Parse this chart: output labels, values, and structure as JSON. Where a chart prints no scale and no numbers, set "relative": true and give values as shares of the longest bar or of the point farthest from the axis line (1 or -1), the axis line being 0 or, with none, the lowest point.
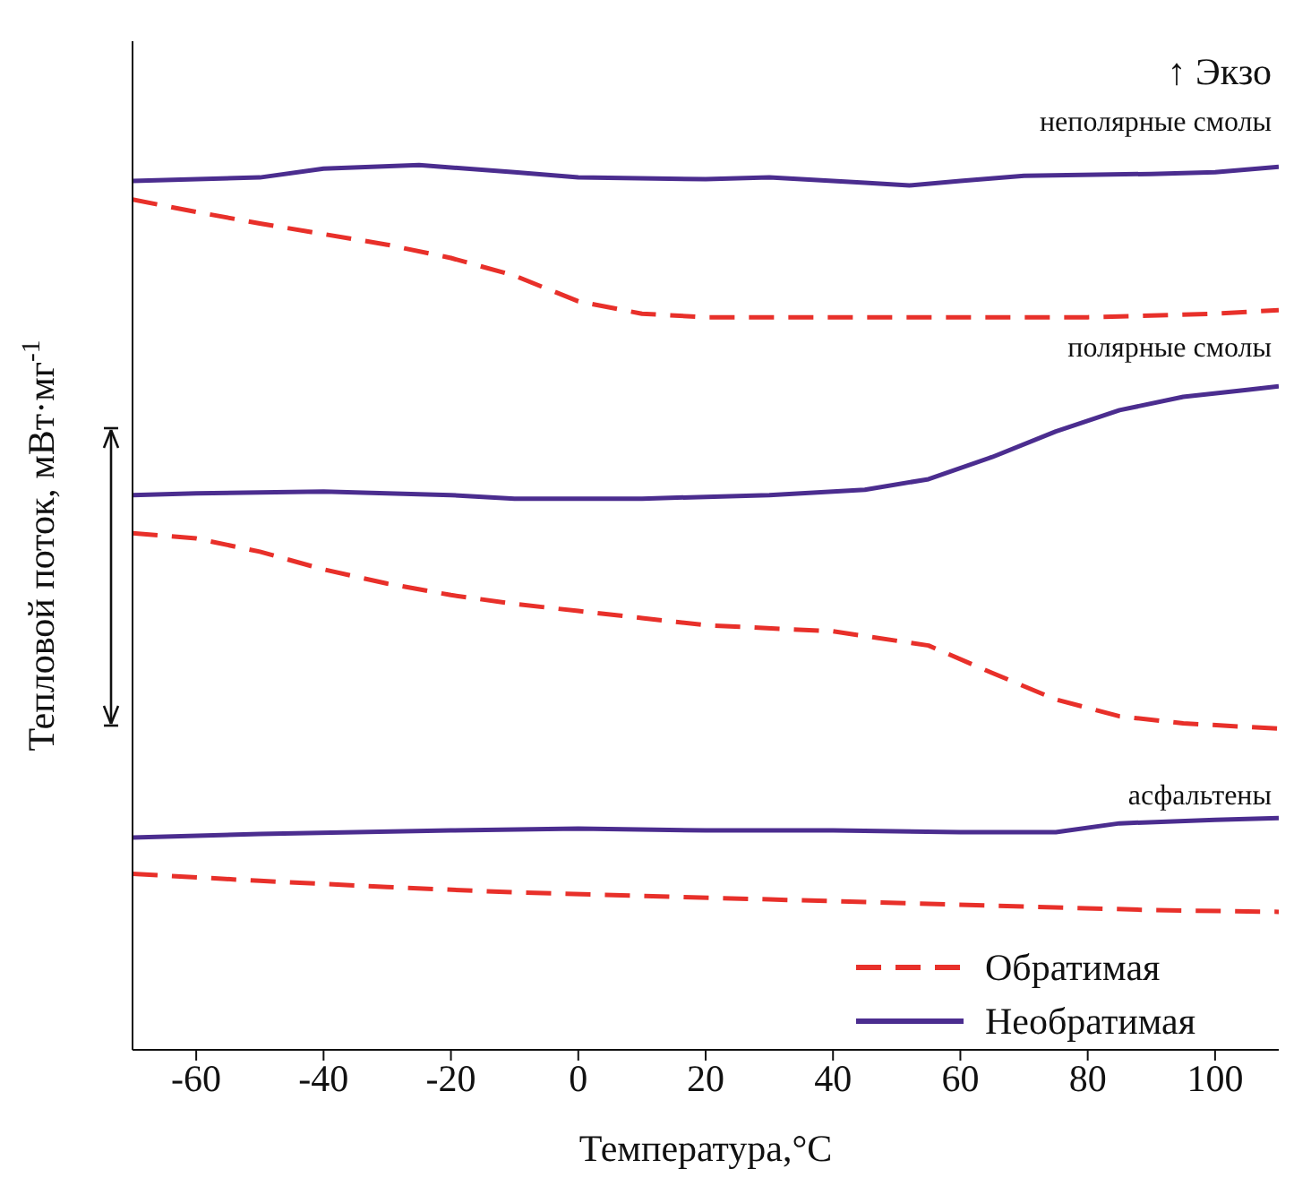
{
  "chart_data": {
    "type": "line",
    "relative": true,
    "xlabel": "Температура,°C",
    "ylabel": "Тепловой поток, мВт·мг$^{-1}$",
    "xlim": [
      -70,
      110
    ],
    "xticks": [
      -60,
      -40,
      -20,
      0,
      20,
      40,
      60,
      80,
      100
    ],
    "legend": "bottom right",
    "marker": "none",
    "annotations": [
      "↑ Экзо",
      "неполярные смолы",
      "полярные смолы",
      "асфальтены"
    ],
    "series": [
      {
        "name": "Необратимая",
        "color": "#4b2d8f",
        "line_style": "solid",
        "x": [
          -70,
          -50,
          -40,
          -25,
          -10,
          0,
          20,
          30,
          45,
          52,
          60,
          70,
          90,
          100,
          110
        ],
        "values": [
          0.982,
          0.986,
          0.996,
          1,
          0.992,
          0.986,
          0.984,
          0.986,
          0.98,
          0.977,
          0.982,
          0.988,
          0.99,
          0.992,
          0.998
        ]
      },
      {
        "name": "Обратимая",
        "color": "#e8302a",
        "line_style": "dashed",
        "x": [
          -70,
          -60,
          -50,
          -40,
          -30,
          -20,
          -10,
          0,
          10,
          20,
          40,
          60,
          80,
          100,
          110
        ],
        "values": [
          0.961,
          0.947,
          0.934,
          0.922,
          0.91,
          0.895,
          0.875,
          0.846,
          0.832,
          0.828,
          0.828,
          0.828,
          0.828,
          0.832,
          0.836
        ]
      },
      {
        "color": "#4b2d8f",
        "line_style": "solid",
        "x": [
          -70,
          -60,
          -40,
          -20,
          -10,
          10,
          30,
          45,
          55,
          65,
          75,
          85,
          95,
          105,
          110
        ],
        "values": [
          0.627,
          0.629,
          0.631,
          0.627,
          0.623,
          0.623,
          0.627,
          0.633,
          0.645,
          0.67,
          0.699,
          0.723,
          0.738,
          0.746,
          0.75
        ]
      },
      {
        "color": "#e8302a",
        "line_style": "dashed",
        "x": [
          -70,
          -60,
          -50,
          -40,
          -30,
          -20,
          -10,
          0,
          10,
          20,
          40,
          55,
          65,
          75,
          85,
          95,
          110
        ],
        "values": [
          0.584,
          0.578,
          0.563,
          0.543,
          0.527,
          0.514,
          0.504,
          0.496,
          0.488,
          0.48,
          0.473,
          0.457,
          0.426,
          0.396,
          0.377,
          0.369,
          0.363
        ]
      },
      {
        "color": "#4b2d8f",
        "line_style": "solid",
        "x": [
          -70,
          -50,
          -20,
          0,
          20,
          40,
          60,
          75,
          85,
          100,
          110
        ],
        "values": [
          0.24,
          0.244,
          0.248,
          0.25,
          0.248,
          0.248,
          0.246,
          0.246,
          0.256,
          0.26,
          0.262
        ]
      },
      {
        "color": "#e8302a",
        "line_style": "dashed",
        "x": [
          -70,
          -50,
          -30,
          -10,
          10,
          30,
          50,
          70,
          90,
          110
        ],
        "values": [
          0.199,
          0.191,
          0.184,
          0.178,
          0.174,
          0.17,
          0.166,
          0.162,
          0.158,
          0.156
        ]
      }
    ]
  }
}
